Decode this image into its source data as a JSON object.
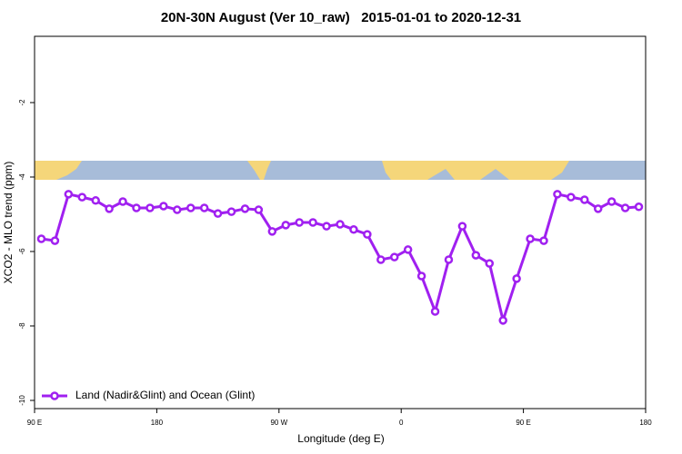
{
  "chart_data": {
    "type": "line",
    "title": "20N-30N August (Ver 10_raw)   2015-01-01 to 2020-12-31",
    "x_label": "Longitude (deg E)",
    "y_label": "XCO2 - MLO trend (ppm)",
    "xlim": [
      90,
      540
    ],
    "ylim": [
      -10.22,
      -0.22
    ],
    "xticks": [
      {
        "value": 90,
        "label": "90 E"
      },
      180,
      {
        "value": 270,
        "label": "90 W"
      },
      {
        "value": 360,
        "label": "0"
      },
      {
        "value": 450,
        "label": "90 E"
      },
      {
        "value": 540,
        "label": "180"
      }
    ],
    "yticks": [
      -10,
      -8,
      -6,
      -4,
      -2
    ],
    "legend": "bottom-left",
    "x": [
      95,
      105,
      115,
      125,
      135,
      145,
      155,
      165,
      175,
      185,
      195,
      205,
      215,
      225,
      235,
      245,
      255,
      265,
      275,
      285,
      295,
      305,
      315,
      325,
      335,
      345,
      355,
      365,
      375,
      385,
      395,
      405,
      415,
      425,
      435,
      445,
      455,
      465,
      475,
      485,
      495,
      505,
      515,
      525,
      535
    ],
    "series": [
      {
        "name": "Land (Nadir&Glint) and Ocean (Glint)",
        "color": "#a020f0",
        "values": [
          -5.66,
          -5.71,
          -4.46,
          -4.54,
          -4.63,
          -4.85,
          -4.66,
          -4.83,
          -4.83,
          -4.78,
          -4.88,
          -4.83,
          -4.83,
          -4.98,
          -4.93,
          -4.85,
          -4.88,
          -5.46,
          -5.29,
          -5.22,
          -5.22,
          -5.32,
          -5.27,
          -5.41,
          -5.54,
          -6.22,
          -6.15,
          -5.95,
          -6.66,
          -7.61,
          -6.22,
          -5.32,
          -6.1,
          -6.32,
          -7.85,
          -6.73,
          -5.66,
          -5.71,
          -4.46,
          -4.54,
          -4.61,
          -4.85,
          -4.66,
          -4.83,
          -4.8
        ]
      }
    ]
  }
}
